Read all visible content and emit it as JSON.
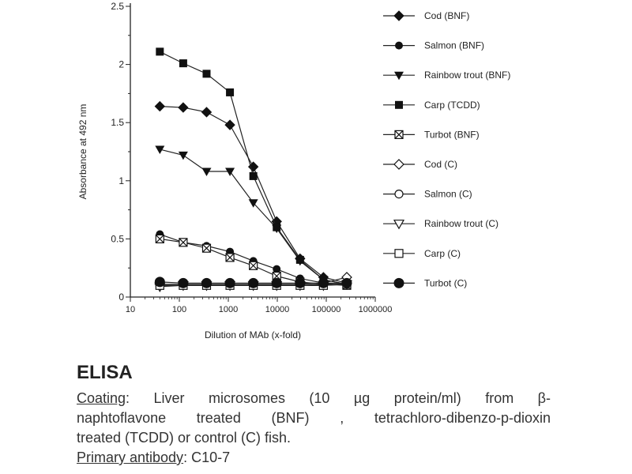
{
  "chart_data": {
    "type": "line",
    "title": "",
    "xlabel": "Dilution of MAb (x-fold)",
    "ylabel": "Absorbance at 492 nm",
    "xscale": "log",
    "xlim": [
      10,
      1000000
    ],
    "ylim": [
      0,
      2.5
    ],
    "x_ticks": [
      "10",
      "100",
      "1000",
      "10000",
      "100000",
      "1000000"
    ],
    "y_ticks": [
      "0",
      "0.5",
      "1",
      "1.5",
      "2",
      "2.5"
    ],
    "grid": false,
    "legend_position": "right",
    "x": [
      40,
      120,
      360,
      1080,
      3240,
      9720,
      29160,
      87480,
      262440
    ],
    "series": [
      {
        "name": "Cod (BNF)",
        "marker": "diamond-filled",
        "values": [
          1.64,
          1.63,
          1.59,
          1.48,
          1.12,
          0.65,
          0.33,
          0.17,
          0.12
        ]
      },
      {
        "name": "Salmon (BNF)",
        "marker": "circle-filled",
        "values": [
          0.54,
          0.47,
          0.44,
          0.39,
          0.31,
          0.24,
          0.16,
          0.12,
          0.11
        ]
      },
      {
        "name": "Rainbow trout (BNF)",
        "marker": "triangle-down-filled",
        "values": [
          1.27,
          1.22,
          1.08,
          1.08,
          0.81,
          0.59,
          0.31,
          0.15,
          0.11
        ]
      },
      {
        "name": "Carp (TCDD)",
        "marker": "square-filled",
        "values": [
          2.11,
          2.01,
          1.92,
          1.76,
          1.04,
          0.6,
          0.32,
          0.15,
          0.11
        ]
      },
      {
        "name": "Turbot (BNF)",
        "marker": "square-cross",
        "values": [
          0.5,
          0.47,
          0.42,
          0.34,
          0.27,
          0.18,
          0.13,
          0.11,
          0.1
        ]
      },
      {
        "name": "Cod (C)",
        "marker": "diamond-open",
        "values": [
          0.11,
          0.11,
          0.11,
          0.11,
          0.11,
          0.11,
          0.11,
          0.12,
          0.17
        ]
      },
      {
        "name": "Salmon (C)",
        "marker": "circle-open",
        "values": [
          0.1,
          0.1,
          0.1,
          0.1,
          0.1,
          0.1,
          0.1,
          0.11,
          0.12
        ]
      },
      {
        "name": "Rainbow trout (C)",
        "marker": "triangle-down-open",
        "values": [
          0.09,
          0.1,
          0.1,
          0.1,
          0.1,
          0.1,
          0.1,
          0.1,
          0.11
        ]
      },
      {
        "name": "Carp (C)",
        "marker": "square-open",
        "values": [
          0.1,
          0.1,
          0.1,
          0.1,
          0.1,
          0.1,
          0.1,
          0.1,
          0.11
        ]
      },
      {
        "name": "Turbot (C)",
        "marker": "circle-big-filled",
        "values": [
          0.13,
          0.12,
          0.12,
          0.12,
          0.12,
          0.12,
          0.12,
          0.12,
          0.12
        ]
      }
    ]
  },
  "caption": {
    "title": "ELISA",
    "coating_label": "Coating",
    "line1_rest": ": Liver microsomes (10 µg protein/ml) from β-",
    "line2": "naphtoflavone treated (BNF) , tetrachloro-dibenzo-p-dioxin",
    "line3": "treated (TCDD) or control (C) fish.",
    "antibody_label": "Primary antibody",
    "antibody_value": ": C10-7"
  }
}
